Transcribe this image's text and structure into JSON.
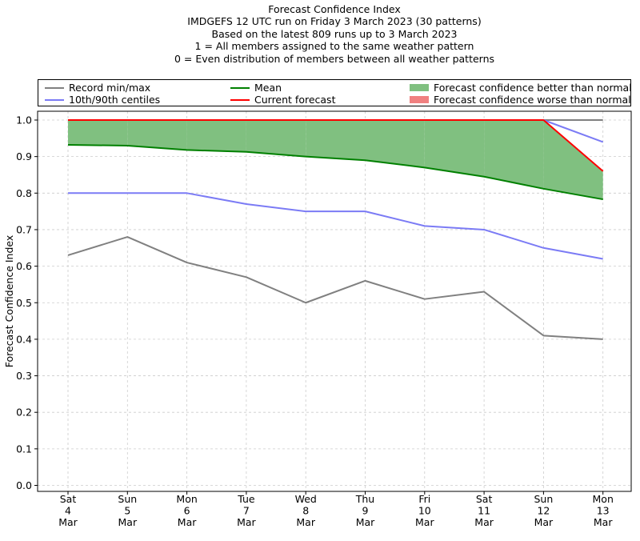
{
  "title_lines": [
    "Forecast Confidence Index",
    "IMDGEFS 12 UTC run on Friday 3 March 2023 (30 patterns)",
    "Based on the latest 809 runs up to 3 March 2023",
    "1 = All members assigned to the same weather pattern",
    "0 = Even distribution of members between all weather patterns"
  ],
  "legend": {
    "record": "Record min/max",
    "centiles": "10th/90th centiles",
    "mean": "Mean",
    "current": "Current forecast",
    "better": "Forecast confidence better than normal",
    "worse": "Forecast confidence worse than normal"
  },
  "colors": {
    "record": "#808080",
    "centiles": "#7b7bf5",
    "mean": "#008000",
    "current": "#ff0000",
    "better": "#80c080",
    "worse": "#f08080",
    "grid": "#cccccc"
  },
  "chart_data": {
    "type": "line",
    "ylabel": "Forecast Confidence Index",
    "xlabel": "",
    "ylim": [
      0.0,
      1.0
    ],
    "yticks": [
      "0.0",
      "0.1",
      "0.2",
      "0.3",
      "0.4",
      "0.5",
      "0.6",
      "0.7",
      "0.8",
      "0.9",
      "1.0"
    ],
    "grid": true,
    "legend_position": "top",
    "categories": [
      [
        "Sat",
        "4",
        "Mar"
      ],
      [
        "Sun",
        "5",
        "Mar"
      ],
      [
        "Mon",
        "6",
        "Mar"
      ],
      [
        "Tue",
        "7",
        "Mar"
      ],
      [
        "Wed",
        "8",
        "Mar"
      ],
      [
        "Thu",
        "9",
        "Mar"
      ],
      [
        "Fri",
        "10",
        "Mar"
      ],
      [
        "Sat",
        "11",
        "Mar"
      ],
      [
        "Sun",
        "12",
        "Mar"
      ],
      [
        "Mon",
        "13",
        "Mar"
      ]
    ],
    "series": [
      {
        "name": "Record min/max",
        "role": "record_max",
        "values": [
          1.0,
          1.0,
          1.0,
          1.0,
          1.0,
          1.0,
          1.0,
          1.0,
          1.0,
          1.0
        ]
      },
      {
        "name": "Record min/max",
        "role": "record_min",
        "values": [
          0.63,
          0.68,
          0.61,
          0.57,
          0.5,
          0.56,
          0.51,
          0.53,
          0.41,
          0.4
        ]
      },
      {
        "name": "10th/90th centiles",
        "role": "centile_90",
        "values": [
          1.0,
          1.0,
          1.0,
          1.0,
          1.0,
          1.0,
          1.0,
          1.0,
          1.0,
          0.94
        ]
      },
      {
        "name": "10th/90th centiles",
        "role": "centile_10",
        "values": [
          0.8,
          0.8,
          0.8,
          0.77,
          0.75,
          0.75,
          0.71,
          0.7,
          0.65,
          0.62
        ]
      },
      {
        "name": "Mean",
        "role": "mean",
        "values": [
          0.932,
          0.93,
          0.918,
          0.913,
          0.9,
          0.89,
          0.87,
          0.845,
          0.812,
          0.783
        ]
      },
      {
        "name": "Current forecast",
        "role": "current",
        "values": [
          1.0,
          1.0,
          1.0,
          1.0,
          1.0,
          1.0,
          1.0,
          1.0,
          1.0,
          0.86
        ]
      }
    ]
  }
}
